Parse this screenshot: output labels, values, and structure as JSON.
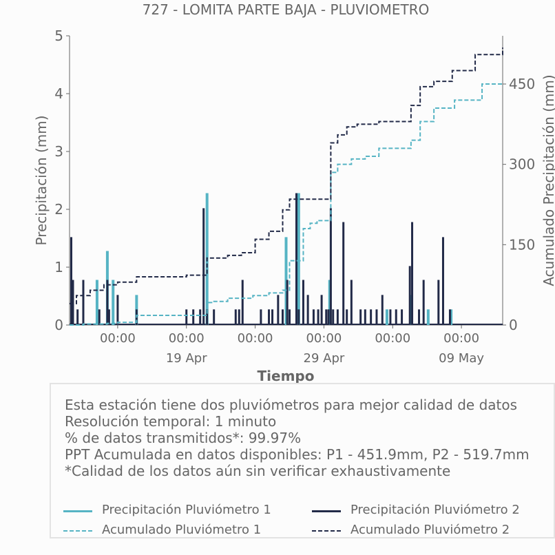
{
  "chart_data": {
    "type": "line",
    "title": "727 - LOMITA PARTE BAJA - PLUVIOMETRO",
    "xlabel": "Tiempo",
    "ylabel": "Precipitación (mm)",
    "ylabel_right": "Acumulado Precipitación (mm)",
    "ylim": [
      0,
      5
    ],
    "yticks": [
      "0",
      "1",
      "2",
      "3",
      "4",
      "5"
    ],
    "ylim_right": [
      0,
      540
    ],
    "yticks_right": [
      "0",
      "150",
      "300",
      "450"
    ],
    "xlim": [
      "2025-04-10T12:00",
      "2025-05-12T00:00"
    ],
    "xticks": [
      {
        "at": "2025-04-14T00:00",
        "label": "00:00",
        "date": ""
      },
      {
        "at": "2025-04-19T00:00",
        "label": "00:00",
        "date": "19 Apr"
      },
      {
        "at": "2025-04-24T00:00",
        "label": "00:00",
        "date": ""
      },
      {
        "at": "2025-04-29T00:00",
        "label": "00:00",
        "date": "29 Apr"
      },
      {
        "at": "2025-05-04T00:00",
        "label": "00:00",
        "date": ""
      },
      {
        "at": "2025-05-09T00:00",
        "label": "00:00",
        "date": "09 May"
      }
    ],
    "series": [
      {
        "name": "Precipitación Pluviómetro 1",
        "color": "#56b4c4",
        "axis": "left",
        "style": "bars",
        "x": [
          "2025-04-12T12:00",
          "2025-04-13T06:00",
          "2025-04-13T16:00",
          "2025-04-15T09:00",
          "2025-04-20T12:00",
          "2025-04-26T06:00",
          "2025-04-27T04:00",
          "2025-04-29T10:00",
          "2025-05-03T14:00",
          "2025-05-05T08:00",
          "2025-05-06T14:00",
          "2025-05-08T06:00"
        ],
        "values": [
          0.78,
          1.28,
          0.78,
          0.52,
          2.28,
          1.52,
          2.28,
          0.78,
          0.27,
          0.52,
          0.27,
          0.27
        ]
      },
      {
        "name": "Precipitación Pluviómetro 2",
        "color": "#222a48",
        "axis": "left",
        "style": "bars",
        "x": [
          "2025-04-10T15:00",
          "2025-04-10T18:00",
          "2025-04-11T02:00",
          "2025-04-11T12:00",
          "2025-04-12T16:00",
          "2025-04-13T06:00",
          "2025-04-13T09:00",
          "2025-04-14T00:00",
          "2025-04-15T09:00",
          "2025-04-19T00:00",
          "2025-04-19T12:00",
          "2025-04-20T00:00",
          "2025-04-20T06:00",
          "2025-04-20T12:00",
          "2025-04-21T00:00",
          "2025-04-22T14:00",
          "2025-04-22T20:00",
          "2025-04-23T02:00",
          "2025-04-24T10:00",
          "2025-04-25T00:00",
          "2025-04-25T06:00",
          "2025-04-25T16:00",
          "2025-04-26T00:00",
          "2025-04-26T08:00",
          "2025-04-26T12:00",
          "2025-04-27T00:00",
          "2025-04-27T04:00",
          "2025-04-27T12:00",
          "2025-04-27T20:00",
          "2025-04-28T06:00",
          "2025-04-28T14:00",
          "2025-04-28T20:00",
          "2025-04-29T04:00",
          "2025-04-29T08:00",
          "2025-04-29T12:00",
          "2025-04-29T16:00",
          "2025-04-30T00:00",
          "2025-04-30T10:00",
          "2025-04-30T16:00",
          "2025-05-01T00:00",
          "2025-05-01T16:00",
          "2025-05-02T00:00",
          "2025-05-02T10:00",
          "2025-05-02T20:00",
          "2025-05-03T06:00",
          "2025-05-03T20:00",
          "2025-05-04T06:00",
          "2025-05-04T16:00",
          "2025-05-05T06:00",
          "2025-05-05T10:00",
          "2025-05-05T22:00",
          "2025-05-06T06:00",
          "2025-05-07T08:00",
          "2025-05-07T16:00",
          "2025-05-08T04:00"
        ],
        "values": [
          1.52,
          0.78,
          0.27,
          0.78,
          0.27,
          0.78,
          0.27,
          0.52,
          0.27,
          0.27,
          0.27,
          0.27,
          2.02,
          0.27,
          0.27,
          0.27,
          0.27,
          0.78,
          0.27,
          0.27,
          0.27,
          0.52,
          0.27,
          0.78,
          0.27,
          2.28,
          0.27,
          0.78,
          0.52,
          0.27,
          0.27,
          0.52,
          0.27,
          0.27,
          2.02,
          0.27,
          0.27,
          1.78,
          0.27,
          0.78,
          0.27,
          0.27,
          0.27,
          0.27,
          0.52,
          0.27,
          0.27,
          0.27,
          1.02,
          1.78,
          0.27,
          0.78,
          0.78,
          1.52,
          0.27
        ]
      },
      {
        "name": "Acumulado Pluviómetro 1",
        "color": "#56b4c4",
        "axis": "right",
        "style": "dashed-step",
        "x": [
          "2025-04-10T12:00",
          "2025-04-11T12:00",
          "2025-04-13T06:00",
          "2025-04-14T00:00",
          "2025-04-15T09:00",
          "2025-04-20T12:00",
          "2025-04-21T00:00",
          "2025-04-22T00:00",
          "2025-04-23T20:00",
          "2025-04-25T00:00",
          "2025-04-26T00:00",
          "2025-04-26T12:00",
          "2025-04-27T12:00",
          "2025-04-28T00:00",
          "2025-04-28T12:00",
          "2025-04-29T12:00",
          "2025-04-30T00:00",
          "2025-05-01T00:00",
          "2025-05-02T00:00",
          "2025-05-03T00:00",
          "2025-05-05T08:00",
          "2025-05-06T00:00",
          "2025-05-07T00:00",
          "2025-05-08T12:00",
          "2025-05-10T12:00",
          "2025-05-12T00:00"
        ],
        "values": [
          0,
          2,
          3,
          5,
          18,
          42,
          44,
          50,
          55,
          60,
          65,
          120,
          180,
          190,
          195,
          285,
          300,
          310,
          315,
          330,
          345,
          380,
          405,
          420,
          450,
          452
        ]
      },
      {
        "name": "Acumulado Pluviómetro 2",
        "color": "#222a48",
        "axis": "right",
        "style": "dashed-step",
        "x": [
          "2025-04-10T12:00",
          "2025-04-11T00:00",
          "2025-04-12T00:00",
          "2025-04-13T00:00",
          "2025-04-14T00:00",
          "2025-04-15T09:00",
          "2025-04-19T00:00",
          "2025-04-20T12:00",
          "2025-04-22T00:00",
          "2025-04-23T00:00",
          "2025-04-24T00:00",
          "2025-04-25T00:00",
          "2025-04-26T00:00",
          "2025-04-26T12:00",
          "2025-04-29T12:00",
          "2025-04-30T00:00",
          "2025-04-30T16:00",
          "2025-05-01T10:00",
          "2025-05-02T00:00",
          "2025-05-03T00:00",
          "2025-05-05T08:00",
          "2025-05-06T00:00",
          "2025-05-07T00:00",
          "2025-05-08T08:00",
          "2025-05-10T00:00",
          "2025-05-12T00:00"
        ],
        "values": [
          40,
          55,
          65,
          75,
          80,
          90,
          93,
          125,
          130,
          135,
          160,
          175,
          215,
          235,
          340,
          355,
          370,
          375,
          375,
          380,
          410,
          445,
          455,
          475,
          505,
          518
        ]
      }
    ]
  },
  "info": {
    "lines": [
      "Esta estación tiene dos pluviómetros para mejor calidad de datos",
      "Resolución temporal: 1 minuto",
      "% de datos transmitidos*: 99.97%",
      "PPT Acumulada en datos disponibles: P1 - 451.9mm, P2 - 519.7mm",
      "*Calidad de los datos aún sin verificar exhaustivamente"
    ]
  },
  "legend": [
    {
      "label": "Precipitación Pluviómetro 1",
      "color": "#56b4c4",
      "style": "solid"
    },
    {
      "label": "Precipitación Pluviómetro 2",
      "color": "#222a48",
      "style": "solid"
    },
    {
      "label": "Acumulado Pluviómetro 1",
      "color": "#56b4c4",
      "style": "dashed"
    },
    {
      "label": "Acumulado Pluviómetro 2",
      "color": "#222a48",
      "style": "dashed"
    }
  ]
}
